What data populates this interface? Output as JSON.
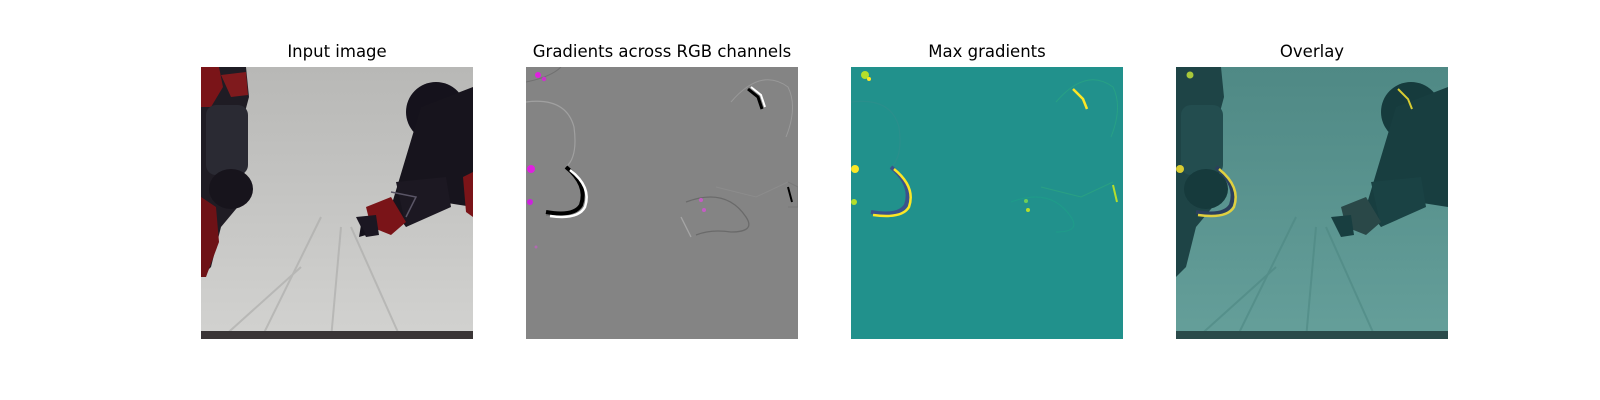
{
  "figure": {
    "panels": [
      {
        "title": "Input image"
      },
      {
        "title": "Gradients across RGB channels"
      },
      {
        "title": "Max gradients"
      },
      {
        "title": "Overlay"
      }
    ]
  },
  "colors": {
    "background": "#ffffff",
    "gradient_gray": "#848484",
    "viridis_teal": "#21918c",
    "overlay_teal": "#5a928d",
    "robot_red": "#7a1418",
    "robot_black": "#15121c",
    "highlight_yellow": "#fde725",
    "highlight_magenta": "#e020e0"
  },
  "icons": {
    "input": "robot-arms-photo",
    "gradients": "rgb-gradient-map",
    "max": "max-gradient-heatmap",
    "overlay": "heatmap-overlay-photo"
  }
}
